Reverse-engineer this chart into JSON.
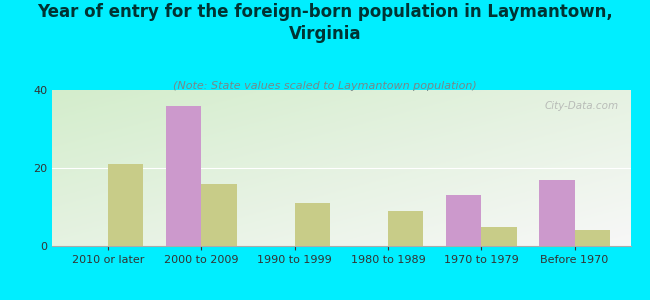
{
  "title": "Year of entry for the foreign-born population in Laymantown,\nVirginia",
  "subtitle": "(Note: State values scaled to Laymantown population)",
  "categories": [
    "2010 or later",
    "2000 to 2009",
    "1990 to 1999",
    "1980 to 1989",
    "1970 to 1979",
    "Before 1970"
  ],
  "laymantown_values": [
    0,
    36,
    0,
    0,
    13,
    17
  ],
  "virginia_values": [
    21,
    16,
    11,
    9,
    5,
    4
  ],
  "laymantown_color": "#cc99cc",
  "virginia_color": "#c8cc88",
  "background_color": "#00eeff",
  "title_color": "#003333",
  "subtitle_color": "#778888",
  "ylim": [
    0,
    40
  ],
  "yticks": [
    0,
    20,
    40
  ],
  "bar_width": 0.38,
  "title_fontsize": 12,
  "subtitle_fontsize": 8,
  "tick_fontsize": 8,
  "legend_fontsize": 10,
  "watermark": "City-Data.com"
}
